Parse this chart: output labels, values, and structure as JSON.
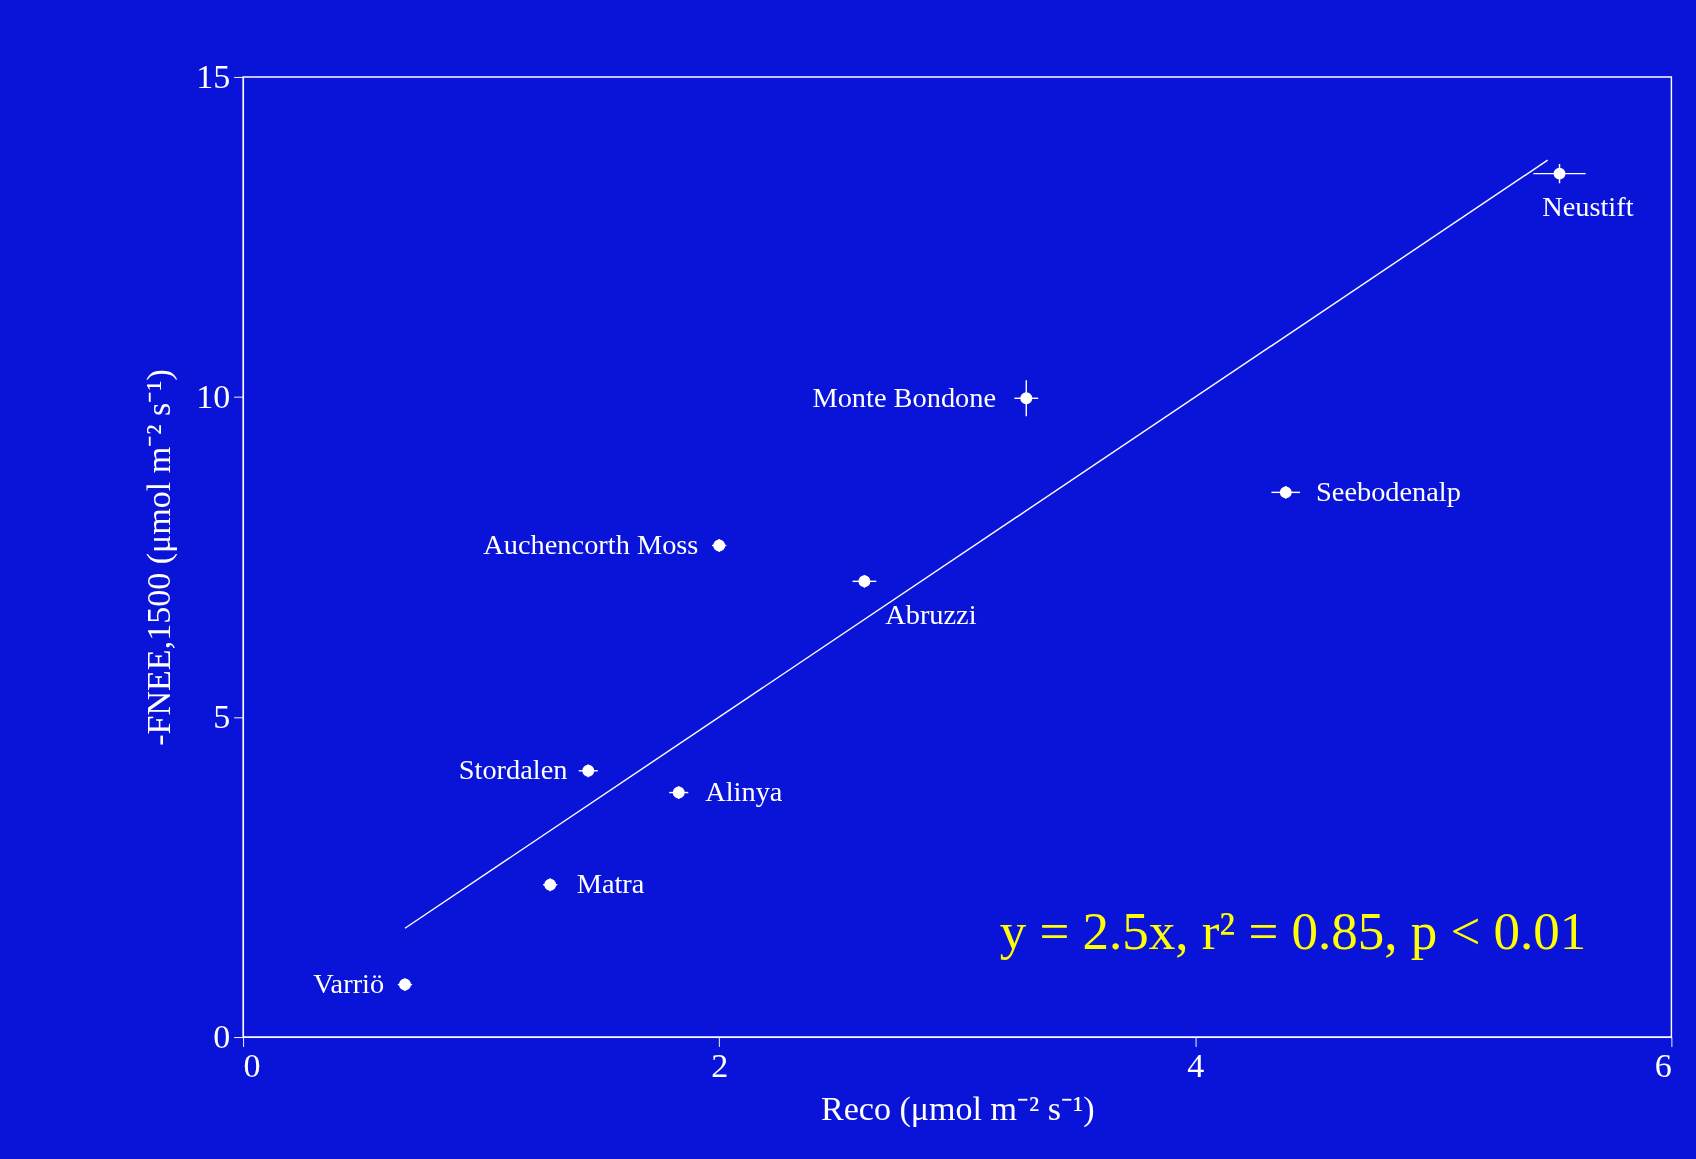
{
  "chart_data": {
    "type": "scatter",
    "xlabel": "Reco (μmol m⁻² s⁻¹)",
    "ylabel": "-FNEE,1500 (μmol m⁻² s⁻¹)",
    "xlim": [
      0,
      6
    ],
    "xticks": [
      0,
      2,
      4,
      6
    ],
    "ylim": [
      0,
      15
    ],
    "yticks": [
      0,
      5,
      10,
      15
    ],
    "grid": false,
    "marker": "circle",
    "series": [
      {
        "color": "#ffffff",
        "x": [
          0.68,
          1.29,
          1.45,
          1.83,
          2.0,
          2.61,
          3.29,
          4.38,
          5.53
        ],
        "values": [
          0.82,
          2.38,
          4.16,
          3.82,
          7.68,
          7.12,
          9.98,
          8.51,
          13.49
        ],
        "errors": [
          0.1,
          0.1,
          0.1,
          0.1,
          0.1,
          0.1,
          0.28,
          0.1,
          0.15
        ],
        "xerrors": [
          0.03,
          0.03,
          0.04,
          0.04,
          0.03,
          0.05,
          0.05,
          0.06,
          0.11
        ]
      },
      {
        "type": "line",
        "marker": "none",
        "color": "#ffffff",
        "x": [
          0.68,
          5.48
        ],
        "values": [
          1.7,
          13.7
        ]
      }
    ],
    "annotations": [
      {
        "text": "Varriö",
        "x": 0.68,
        "y": 0.82
      },
      {
        "text": "Matra",
        "x": 1.29,
        "y": 2.38
      },
      {
        "text": "Stordalen",
        "x": 1.45,
        "y": 4.16
      },
      {
        "text": "Alinya",
        "x": 1.83,
        "y": 3.82
      },
      {
        "text": "Auchencorth Moss",
        "x": 2.0,
        "y": 7.68
      },
      {
        "text": "Abruzzi",
        "x": 2.61,
        "y": 7.12
      },
      {
        "text": "Monte Bondone",
        "x": 3.29,
        "y": 9.98
      },
      {
        "text": "Seebodenalp",
        "x": 4.38,
        "y": 8.51
      },
      {
        "text": "Neustift",
        "x": 5.53,
        "y": 13.49
      },
      "y = 2.5x, r² = 0.85, p < 0.01"
    ]
  }
}
